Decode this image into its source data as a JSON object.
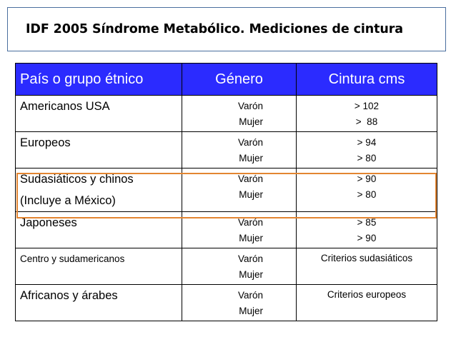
{
  "title": "IDF 2005 Síndrome Metabólico. Mediciones de cintura",
  "table": {
    "headers": [
      "País o grupo étnico",
      "Género",
      "Cintura cms"
    ],
    "rows": [
      {
        "group": [
          "Americanos USA"
        ],
        "genders": [
          "Varón",
          "Mujer"
        ],
        "values": [
          "> 102",
          ">  88"
        ]
      },
      {
        "group": [
          "Europeos"
        ],
        "genders": [
          "Varón",
          "Mujer"
        ],
        "values": [
          "> 94",
          "> 80"
        ]
      },
      {
        "group": [
          "Sudasiáticos y chinos",
          "(Incluye a México)"
        ],
        "genders": [
          "Varón",
          "Mujer"
        ],
        "values": [
          "> 90",
          "> 80"
        ]
      },
      {
        "group": [
          "Japoneses"
        ],
        "genders": [
          "Varón",
          "Mujer"
        ],
        "values": [
          "> 85",
          "> 90"
        ]
      },
      {
        "group": [
          "Centro y sudamericanos"
        ],
        "genders": [
          "Varón",
          "Mujer"
        ],
        "criteria": "Criterios sudasiáticos"
      },
      {
        "group": [
          "Africanos y árabes"
        ],
        "genders": [
          "Varón",
          "Mujer"
        ],
        "criteria": "Criterios europeos"
      }
    ]
  },
  "colors": {
    "header_bg": "#2b2bff",
    "highlight": "#e38531",
    "title_border": "#4a6e9e"
  }
}
